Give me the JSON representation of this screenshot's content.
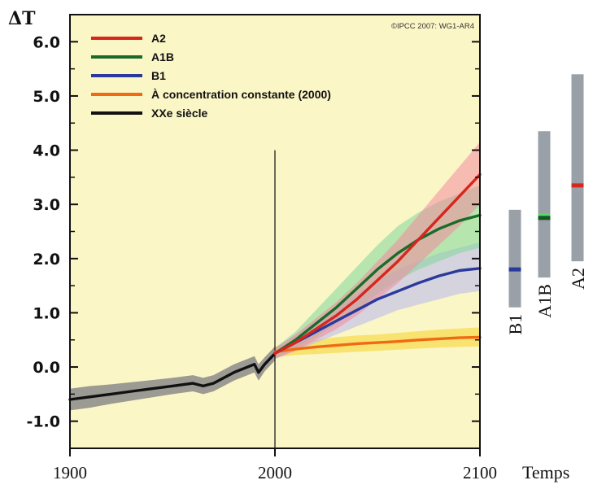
{
  "chart_data": {
    "type": "line",
    "ylabel": "ΔT",
    "xlabel": "Temps",
    "credit": "©IPCC 2007: WG1-AR4",
    "xlim": [
      1900,
      2100
    ],
    "ylim": [
      -1.5,
      6.5
    ],
    "x_ticks": [
      "1900",
      "2000",
      "2100"
    ],
    "y_ticks": [
      {
        "label": "-1.0",
        "value": -1.0
      },
      {
        "label": "0.0",
        "value": 0.0
      },
      {
        "label": "1.0",
        "value": 1.0
      },
      {
        "label": "2.0",
        "value": 2.0
      },
      {
        "label": "3.0",
        "value": 3.0
      },
      {
        "label": "4.0",
        "value": 4.0
      },
      {
        "label": "5.0",
        "value": 5.0
      },
      {
        "label": "6.0",
        "value": 6.0
      }
    ],
    "vertical_marker_year": 2000,
    "series": [
      {
        "name": "A2",
        "color": "#d7261e",
        "band_color": "#f28aa0",
        "x": [
          2000,
          2010,
          2020,
          2030,
          2040,
          2050,
          2060,
          2070,
          2080,
          2090,
          2100
        ],
        "y": [
          0.25,
          0.45,
          0.7,
          0.95,
          1.25,
          1.6,
          1.95,
          2.35,
          2.75,
          3.15,
          3.55
        ],
        "lower": [
          0.15,
          0.3,
          0.5,
          0.7,
          0.95,
          1.25,
          1.55,
          1.9,
          2.25,
          2.6,
          3.0
        ],
        "upper": [
          0.35,
          0.6,
          0.9,
          1.2,
          1.55,
          1.95,
          2.35,
          2.8,
          3.25,
          3.7,
          4.15
        ]
      },
      {
        "name": "A1B",
        "color": "#1a6b2a",
        "band_color": "#7fd79a",
        "x": [
          2000,
          2010,
          2020,
          2030,
          2040,
          2050,
          2060,
          2070,
          2080,
          2090,
          2100
        ],
        "y": [
          0.25,
          0.5,
          0.8,
          1.1,
          1.45,
          1.8,
          2.1,
          2.35,
          2.55,
          2.7,
          2.8
        ],
        "lower": [
          0.15,
          0.35,
          0.55,
          0.8,
          1.05,
          1.35,
          1.6,
          1.8,
          1.95,
          2.1,
          2.2
        ],
        "upper": [
          0.35,
          0.65,
          1.05,
          1.45,
          1.85,
          2.25,
          2.6,
          2.85,
          3.05,
          3.2,
          3.35
        ]
      },
      {
        "name": "B1",
        "color": "#2a3a9c",
        "band_color": "#b6b6f0",
        "x": [
          2000,
          2010,
          2020,
          2030,
          2040,
          2050,
          2060,
          2070,
          2080,
          2090,
          2100
        ],
        "y": [
          0.25,
          0.45,
          0.65,
          0.85,
          1.05,
          1.25,
          1.4,
          1.55,
          1.68,
          1.78,
          1.82
        ],
        "lower": [
          0.15,
          0.3,
          0.45,
          0.6,
          0.75,
          0.9,
          1.05,
          1.15,
          1.25,
          1.35,
          1.4
        ],
        "upper": [
          0.35,
          0.6,
          0.85,
          1.1,
          1.35,
          1.6,
          1.8,
          1.95,
          2.1,
          2.2,
          2.3
        ]
      },
      {
        "name": "À concentration constante (2000)",
        "color": "#f06a14",
        "band_color": "#f5d22a",
        "x": [
          2000,
          2010,
          2020,
          2030,
          2040,
          2050,
          2060,
          2070,
          2080,
          2090,
          2100
        ],
        "y": [
          0.28,
          0.33,
          0.37,
          0.4,
          0.43,
          0.45,
          0.47,
          0.5,
          0.52,
          0.54,
          0.55
        ],
        "lower": [
          0.18,
          0.22,
          0.24,
          0.26,
          0.28,
          0.3,
          0.32,
          0.34,
          0.36,
          0.37,
          0.38
        ],
        "upper": [
          0.38,
          0.45,
          0.5,
          0.55,
          0.58,
          0.6,
          0.63,
          0.66,
          0.69,
          0.71,
          0.73
        ]
      },
      {
        "name": "XXe siècle",
        "color": "#111111",
        "band_color": "#8a8a8a",
        "x": [
          1900,
          1910,
          1920,
          1930,
          1940,
          1950,
          1960,
          1965,
          1970,
          1980,
          1990,
          1992,
          1995,
          2000
        ],
        "y": [
          -0.6,
          -0.55,
          -0.5,
          -0.45,
          -0.4,
          -0.35,
          -0.3,
          -0.35,
          -0.3,
          -0.1,
          0.05,
          -0.1,
          0.05,
          0.25
        ],
        "lower": [
          -0.8,
          -0.75,
          -0.68,
          -0.62,
          -0.56,
          -0.5,
          -0.45,
          -0.5,
          -0.45,
          -0.25,
          -0.1,
          -0.25,
          -0.08,
          0.12
        ],
        "upper": [
          -0.4,
          -0.35,
          -0.32,
          -0.28,
          -0.24,
          -0.2,
          -0.15,
          -0.2,
          -0.15,
          0.05,
          0.2,
          0.05,
          0.18,
          0.38
        ]
      }
    ],
    "ranges_2100": [
      {
        "name": "B1",
        "low": 1.1,
        "high": 2.9,
        "best": 1.8,
        "best_color": "#2a3a9c"
      },
      {
        "name": "A1B",
        "low": 1.65,
        "high": 4.35,
        "best": 2.75,
        "best_color": "#0f5c1e",
        "accent_color": "#59d96b"
      },
      {
        "name": "A2",
        "low": 1.95,
        "high": 5.4,
        "best": 3.35,
        "best_color": "#d7261e"
      }
    ],
    "range_bar_color": "#9aa0a8",
    "plot_background": "#fbf6c6"
  }
}
